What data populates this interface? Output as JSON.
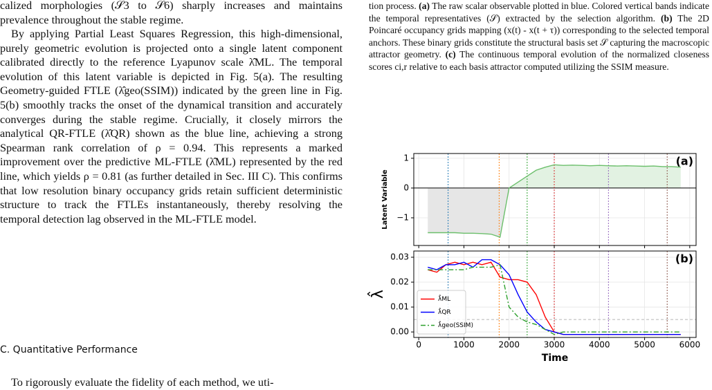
{
  "left_column": {
    "paragraphs": [
      "calized morphologies (𝒮3 to 𝒮6) sharply increases and maintains prevalence throughout the stable regime.",
      "By applying Partial Least Squares Regression, this high-dimensional, purely geometric evolution is projected onto a single latent component calibrated directly to the reference Lyapunov scale λ̂ML. The temporal evolution of this latent variable is depicted in Fig. 5(a). The resulting Geometry-guided FTLE (λ̂geo(SSIM)) indicated by the green line in Fig. 5(b) smoothly tracks the onset of the dynamical transition and accurately converges during the stable regime. Crucially, it closely mirrors the analytical QR-FTLE (λ̂QR) shown as the blue line, achieving a strong Spearman rank correlation of ρ = 0.94. This represents a marked improvement over the predictive ML-FTLE (λ̂ML) represented by the red line, which yields ρ = 0.81 (as further detailed in Sec. III C). This confirms that low resolution binary occupancy grids retain sufficient deterministic structure to track the FTLEs instantaneously, thereby resolving the temporal detection lag observed in the ML-FTLE model."
    ],
    "heading": "C.   Quantitative Performance",
    "last_line": "To rigorously evaluate the fidelity of each method, we uti-"
  },
  "caption": {
    "parts": [
      "tion process. ",
      "(a)",
      " The raw scalar observable plotted in blue. Colored vertical bands indicate the temporal representatives (𝒮) extracted by the selection algorithm. ",
      "(b)",
      " The 2D Poincaré occupancy grids mapping (x(t) - x(t + τ)) corresponding to the selected temporal anchors. These binary grids constitute the structural basis set 𝒮 capturing the macroscopic attractor geometry. ",
      "(c)",
      " The continuous temporal evolution of the normalized closeness scores ci,r relative to each basis attractor computed utilizing the SSIM measure."
    ]
  },
  "chart_data": [
    {
      "type": "line",
      "label": "(a)",
      "ylabel": "Latent Variable",
      "x": [
        200,
        400,
        600,
        800,
        1000,
        1200,
        1400,
        1600,
        1800,
        2000,
        2200,
        2400,
        2600,
        2800,
        3000,
        3200,
        3400,
        3600,
        3800,
        4000,
        4200,
        4400,
        4600,
        4800,
        5000,
        5200,
        5400,
        5600,
        5800
      ],
      "series": [
        {
          "color": "#6bbf6b",
          "values": [
            -1.5,
            -1.5,
            -1.5,
            -1.5,
            -1.52,
            -1.52,
            -1.53,
            -1.55,
            -1.65,
            0.0,
            0.2,
            0.4,
            0.6,
            0.7,
            0.78,
            0.76,
            0.77,
            0.76,
            0.75,
            0.76,
            0.75,
            0.74,
            0.75,
            0.74,
            0.73,
            0.74,
            0.72,
            0.72,
            0.7
          ]
        }
      ],
      "fill": true,
      "hline": 0,
      "xlim": [
        -110,
        6140
      ],
      "ylim": [
        -1.93,
        1.16
      ],
      "yticks": [
        {
          "value": -1,
          "label": "−1"
        },
        0,
        1
      ],
      "grid": true,
      "vlines": {
        "x": [
          650,
          1780,
          2400,
          3000,
          4200,
          5500
        ],
        "colors": [
          "#1f77b4",
          "#ff7f0e",
          "#2ca02c",
          "#d62728",
          "#9467bd",
          "#8c564b"
        ]
      }
    },
    {
      "type": "line",
      "label": "(b)",
      "ylabel": "λ̂",
      "xlabel": "Time",
      "x": [
        200,
        400,
        600,
        800,
        1000,
        1200,
        1400,
        1600,
        1800,
        2000,
        2200,
        2400,
        2600,
        2800,
        3000,
        3200,
        3400,
        3600,
        3800,
        4000,
        4200,
        4400,
        4600,
        4800,
        5000,
        5200,
        5400,
        5600,
        5800
      ],
      "series": [
        {
          "name": "λ̂ML",
          "color": "#ff0000",
          "dash": "solid",
          "values": [
            0.025,
            0.024,
            0.027,
            0.028,
            0.027,
            0.028,
            0.027,
            0.028,
            0.022,
            0.021,
            0.021,
            0.02,
            0.015,
            0.006,
            0.0,
            -0.001,
            -0.001,
            -0.001,
            -0.001,
            -0.001,
            -0.001,
            -0.001,
            -0.001,
            -0.001,
            -0.001,
            -0.001,
            -0.001,
            -0.001,
            -0.001
          ]
        },
        {
          "name": "λ̂QR",
          "color": "#0000ff",
          "dash": "solid",
          "values": [
            0.026,
            0.025,
            0.027,
            0.027,
            0.028,
            0.026,
            0.029,
            0.029,
            0.027,
            0.023,
            0.015,
            0.008,
            0.004,
            0.001,
            0.0,
            -0.001,
            -0.001,
            -0.001,
            -0.001,
            -0.001,
            -0.001,
            -0.001,
            -0.001,
            -0.001,
            -0.001,
            -0.001,
            -0.001,
            -0.001,
            -0.001
          ]
        },
        {
          "name": "λ̂geo(SSIM)",
          "color": "#2ca02c",
          "dash": "dashdot",
          "values": [
            0.025,
            0.025,
            0.025,
            0.025,
            0.025,
            0.026,
            0.026,
            0.026,
            0.027,
            0.01,
            0.006,
            0.004,
            0.003,
            0.001,
            -0.001,
            0.0,
            0.0,
            0.0,
            0.0,
            0.0,
            0.0,
            0.0,
            0.0,
            0.0,
            0.0,
            0.0,
            0.0,
            0.0,
            0.0
          ]
        }
      ],
      "hline": 0.005,
      "legend": "lower left",
      "xlim": [
        -110,
        6140
      ],
      "xticks": [
        0,
        1000,
        2000,
        3000,
        4000,
        5000,
        6000
      ],
      "ylim": [
        -0.0022,
        0.0325
      ],
      "yticks": [
        {
          "value": 0,
          "label": "0.00"
        },
        {
          "value": 0.01,
          "label": "0.01"
        },
        {
          "value": 0.02,
          "label": "0.02"
        },
        {
          "value": 0.03,
          "label": "0.03"
        }
      ],
      "grid": true,
      "vlines": {
        "x": [
          650,
          1780,
          2400,
          3000,
          4200,
          5500
        ],
        "colors": [
          "#1f77b4",
          "#ff7f0e",
          "#2ca02c",
          "#d62728",
          "#9467bd",
          "#8c564b"
        ]
      }
    }
  ]
}
